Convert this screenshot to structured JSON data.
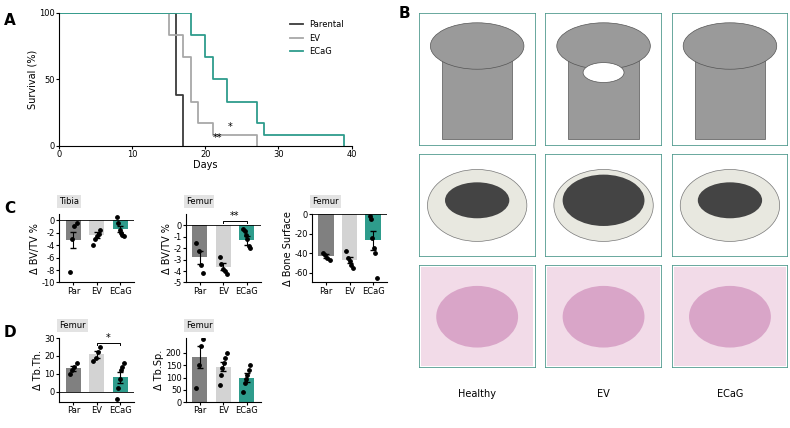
{
  "chart_data": [
    {
      "type": "step",
      "panel_label": "A",
      "x_label": "Days",
      "y_label": "Survival (%)",
      "xlim": [
        0,
        40
      ],
      "xticks": [
        0,
        10,
        20,
        30,
        40
      ],
      "ylim": [
        0,
        100
      ],
      "yticks": [
        0,
        50,
        100
      ],
      "legend": "upper right",
      "series": [
        {
          "name": "Parental",
          "color": "#3a3a3a",
          "x": [
            0,
            16,
            17
          ],
          "values": [
            100,
            38,
            0
          ]
        },
        {
          "name": "EV",
          "color": "#a8a8a8",
          "x": [
            0,
            15,
            17,
            18,
            19,
            21,
            27
          ],
          "values": [
            100,
            83,
            67,
            33,
            17,
            8,
            0
          ]
        },
        {
          "name": "ECaG",
          "color": "#2e9c8c",
          "x": [
            0,
            18,
            20,
            21,
            23,
            27,
            28,
            39
          ],
          "values": [
            100,
            83,
            67,
            50,
            33,
            17,
            8,
            0
          ]
        }
      ],
      "annotations": [
        {
          "text": "*",
          "x": 23,
          "y": 14
        },
        {
          "text": "**",
          "x": 21,
          "y": 6
        }
      ]
    },
    {
      "type": "bar",
      "panel_label": "C",
      "title": "Tibia",
      "y_label": "Δ BV/TV %",
      "categories": [
        "Par",
        "EV",
        "ECaG"
      ],
      "colors": [
        "#808080",
        "#d3d3d3",
        "#2e9c8c"
      ],
      "values": [
        -3.2,
        -2.4,
        -1.4
      ],
      "errors": [
        1.3,
        0.5,
        0.5
      ],
      "points": [
        [
          -8.3,
          -3.0,
          -1.0,
          -0.5
        ],
        [
          -4.0,
          -3.0,
          -2.5,
          -2.2,
          -1.5
        ],
        [
          0.5,
          -0.5,
          -1.5,
          -2.0,
          -2.3,
          -2.5
        ]
      ],
      "ylim": [
        -10,
        1
      ],
      "yticks": [
        -10,
        -8,
        -6,
        -4,
        -2,
        0
      ],
      "annotations": []
    },
    {
      "type": "bar",
      "title": "Femur",
      "y_label": "Δ BV/TV %",
      "categories": [
        "Par",
        "EV",
        "ECaG"
      ],
      "colors": [
        "#808080",
        "#d3d3d3",
        "#2e9c8c"
      ],
      "values": [
        -2.8,
        -3.6,
        -1.3
      ],
      "errors": [
        0.6,
        0.3,
        0.4
      ],
      "points": [
        [
          -1.5,
          -2.2,
          -3.5,
          -4.2
        ],
        [
          -2.8,
          -3.4,
          -3.8,
          -4.0,
          -4.3
        ],
        [
          -0.3,
          -0.5,
          -0.8,
          -1.2,
          -1.8,
          -2.0
        ]
      ],
      "ylim": [
        -5,
        1
      ],
      "yticks": [
        -5,
        -4,
        -3,
        -2,
        -1,
        0
      ],
      "annotations": [
        {
          "text": "**",
          "between": [
            1,
            2
          ],
          "y": 0.4
        }
      ]
    },
    {
      "type": "bar",
      "title": "Femur",
      "y_label": "Δ Bone Surface",
      "categories": [
        "Par",
        "EV",
        "ECaG"
      ],
      "colors": [
        "#808080",
        "#d3d3d3",
        "#2e9c8c"
      ],
      "values": [
        -43,
        -47,
        -27
      ],
      "errors": [
        2,
        3,
        10
      ],
      "points": [
        [
          -40,
          -42,
          -45,
          -47
        ],
        [
          -38,
          -45,
          -48,
          -52,
          -55
        ],
        [
          -2,
          -5,
          -25,
          -35,
          -40,
          -65
        ]
      ],
      "ylim": [
        -70,
        0
      ],
      "yticks": [
        -60,
        -40,
        -20,
        0
      ],
      "annotations": []
    },
    {
      "type": "bar",
      "panel_label": "D",
      "title": "Femur",
      "y_label": "Δ Tb.Th.",
      "categories": [
        "Par",
        "EV",
        "ECaG"
      ],
      "colors": [
        "#808080",
        "#d3d3d3",
        "#2e9c8c"
      ],
      "values": [
        13,
        21,
        8
      ],
      "errors": [
        1.5,
        2,
        3
      ],
      "points": [
        [
          10,
          12,
          14,
          16
        ],
        [
          17,
          19,
          22,
          25
        ],
        [
          -4,
          2,
          7,
          12,
          14,
          16
        ]
      ],
      "ylim": [
        -6,
        30
      ],
      "yticks": [
        0,
        10,
        20,
        30
      ],
      "annotations": [
        {
          "text": "*",
          "between": [
            1,
            2
          ],
          "y": 27
        }
      ]
    },
    {
      "type": "bar",
      "title": "Femur",
      "y_label": "Δ Tb.Sp.",
      "categories": [
        "Par",
        "EV",
        "ECaG"
      ],
      "colors": [
        "#808080",
        "#d3d3d3",
        "#2e9c8c"
      ],
      "values": [
        183,
        145,
        100
      ],
      "errors": [
        45,
        20,
        17
      ],
      "points": [
        [
          60,
          150,
          230,
          255
        ],
        [
          70,
          110,
          140,
          160,
          180,
          200
        ],
        [
          40,
          80,
          95,
          110,
          130,
          150
        ]
      ],
      "ylim": [
        0,
        260
      ],
      "yticks": [
        0,
        50,
        100,
        150,
        200
      ],
      "annotations": []
    }
  ],
  "images": {
    "panel_label": "B",
    "labels": [
      "Healthy",
      "EV",
      "ECaG"
    ]
  }
}
